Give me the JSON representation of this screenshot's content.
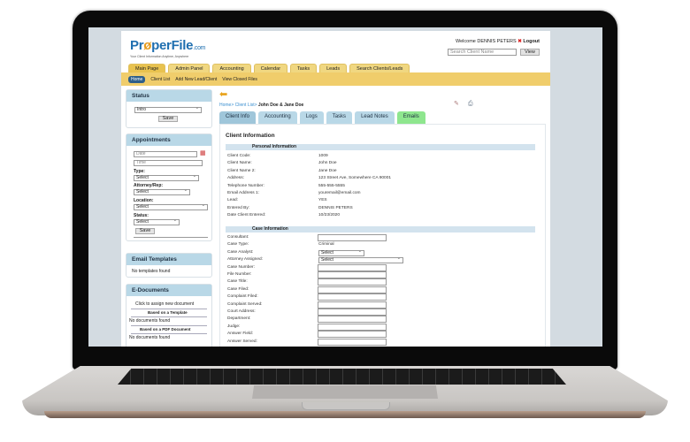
{
  "header": {
    "logo": "PrøperFile",
    "logo_suffix": ".com",
    "tagline": "Your Client Information Anytime, Anywhere",
    "welcome": "Welcome DENNIS PETERS",
    "logout": "Logout",
    "search_placeholder": "Search Client Name",
    "view": "View"
  },
  "tabs": [
    "Main Page",
    "Admin Panel",
    "Accounting",
    "Calendar",
    "Tasks",
    "Leads",
    "Search Clients/Leads"
  ],
  "subnav": [
    "Home",
    "Client List",
    "Add New Lead/Client",
    "View Closed Files"
  ],
  "sidebar": {
    "status": {
      "title": "Status",
      "value": "Intro",
      "save": "Save"
    },
    "appointments": {
      "title": "Appointments",
      "date_placeholder": "Date",
      "time_placeholder": "Time",
      "type_label": "Type:",
      "attorney_label": "Attorney/Rep:",
      "location_label": "Location:",
      "status_label": "Status:",
      "select": "Select",
      "save": "Save"
    },
    "email_templates": {
      "title": "Email Templates",
      "empty": "No templates found"
    },
    "edocs": {
      "title": "E-Documents",
      "assign": "Click to assign new document",
      "template_hd": "Based on a Template",
      "template_empty": "No documents found",
      "pdf_hd": "Based on a PDF Document",
      "pdf_empty": "No documents found"
    }
  },
  "breadcrumb": {
    "home": "Home",
    "sep": ">",
    "list": "Client List",
    "current": "John Doe & Jane Doe"
  },
  "client_tabs": [
    "Client Info",
    "Accounting",
    "Logs",
    "Tasks",
    "Lead Notes",
    "Emails"
  ],
  "content": {
    "title": "Client Information",
    "personal_hd": "Personal Information",
    "personal": [
      [
        "Client Code:",
        "1009"
      ],
      [
        "Client Name:",
        "John Doe"
      ],
      [
        "Client Name 2:",
        "Jane Doe"
      ],
      [
        "Address:",
        "123 Street Ave, Somewhere CA 90001"
      ],
      [
        "Telephone Number:",
        "555-555-5555"
      ],
      [
        "Email Address 1:",
        "youremail@email.com"
      ],
      [
        "Lead:",
        "YES"
      ],
      [
        "Entered By:",
        "DENNIS PETERS"
      ],
      [
        "Date Client Entered:",
        "10/23/2020"
      ]
    ],
    "case_hd": "Case Information",
    "case": [
      [
        "Consultant:",
        ""
      ],
      [
        "Case Type:",
        "Criminal"
      ],
      [
        "Case Analyst:",
        "Select"
      ],
      [
        "Attorney Assigned:",
        "Select"
      ],
      [
        "Case Number:",
        ""
      ],
      [
        "File Number:",
        ""
      ],
      [
        "Case Title:",
        ""
      ],
      [
        "Case Filed:",
        ""
      ],
      [
        "Complaint Filed:",
        ""
      ],
      [
        "Complaint Served:",
        ""
      ],
      [
        "Court Address:",
        ""
      ],
      [
        "Department:",
        ""
      ],
      [
        "Judge:",
        ""
      ],
      [
        "Answer Field:",
        ""
      ],
      [
        "Answer Served:",
        ""
      ]
    ]
  },
  "colors": {
    "nav_yellow": "#f0cd6b",
    "panel_blue": "#b9d8e7",
    "emails_green": "#8ee68e",
    "logo_blue": "#1f6fb0"
  }
}
